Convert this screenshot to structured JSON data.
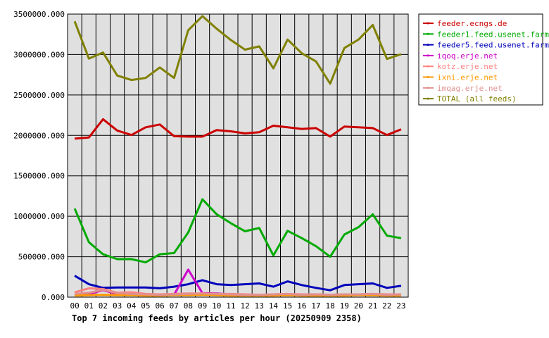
{
  "chart_data": {
    "type": "line",
    "title": "Top 7 incoming feeds by articles per hour (20250909 2358)",
    "xlabel": "",
    "ylabel": "",
    "ylim": [
      0,
      3500000
    ],
    "y_ticks": [
      "0.000",
      "500000.000",
      "1000000.000",
      "1500000.000",
      "2000000.000",
      "2500000.000",
      "3000000.000",
      "3500000.000"
    ],
    "categories": [
      "00",
      "01",
      "02",
      "03",
      "04",
      "05",
      "06",
      "07",
      "08",
      "09",
      "10",
      "11",
      "12",
      "13",
      "14",
      "15",
      "16",
      "17",
      "18",
      "19",
      "20",
      "21",
      "22",
      "23"
    ],
    "grid": true,
    "legend_position": "top-right",
    "series": [
      {
        "name": "feeder.ecngs.de",
        "color": "#cc0000",
        "values": [
          1960000,
          1975000,
          2200000,
          2060000,
          2005000,
          2100000,
          2135000,
          1990000,
          1985000,
          1985000,
          2065000,
          2050000,
          2025000,
          2040000,
          2120000,
          2100000,
          2080000,
          2090000,
          1985000,
          2110000,
          2100000,
          2090000,
          2005000,
          2075000
        ]
      },
      {
        "name": "feeder1.feed.usenet.farm",
        "color": "#00aa00",
        "values": [
          1095000,
          680000,
          530000,
          470000,
          470000,
          430000,
          530000,
          545000,
          800000,
          1210000,
          1025000,
          915000,
          815000,
          855000,
          515000,
          820000,
          730000,
          630000,
          500000,
          775000,
          865000,
          1025000,
          760000,
          730000
        ]
      },
      {
        "name": "feeder5.feed.usenet.farm",
        "color": "#0000bb",
        "values": [
          265000,
          160000,
          115000,
          120000,
          120000,
          120000,
          110000,
          130000,
          160000,
          210000,
          160000,
          150000,
          160000,
          170000,
          130000,
          195000,
          150000,
          115000,
          85000,
          150000,
          160000,
          170000,
          115000,
          140000
        ]
      },
      {
        "name": "iqoq.erje.net",
        "color": "#cc00cc",
        "values": [
          30000,
          40000,
          85000,
          40000,
          30000,
          25000,
          25000,
          30000,
          340000,
          50000,
          45000,
          35000,
          25000,
          25000,
          30000,
          30000,
          25000,
          30000,
          25000,
          30000,
          30000,
          35000,
          25000,
          30000
        ]
      },
      {
        "name": "kotz.erje.net",
        "color": "#ff8080",
        "values": [
          60000,
          110000,
          100000,
          55000,
          60000,
          40000,
          35000,
          40000,
          45000,
          45000,
          40000,
          40000,
          35000,
          30000,
          35000,
          40000,
          35000,
          35000,
          30000,
          35000,
          35000,
          40000,
          35000,
          35000
        ]
      },
      {
        "name": "ixni.erje.net",
        "color": "#ff9900",
        "values": [
          20000,
          25000,
          30000,
          25000,
          25000,
          20000,
          20000,
          25000,
          25000,
          30000,
          25000,
          20000,
          20000,
          20000,
          20000,
          25000,
          20000,
          20000,
          20000,
          20000,
          25000,
          25000,
          20000,
          20000
        ]
      },
      {
        "name": "imqag.erje.net",
        "color": "#e09090",
        "values": [
          40000,
          55000,
          90000,
          50000,
          40000,
          35000,
          30000,
          35000,
          40000,
          45000,
          40000,
          35000,
          30000,
          30000,
          35000,
          40000,
          30000,
          35000,
          30000,
          35000,
          35000,
          40000,
          30000,
          35000
        ]
      },
      {
        "name": "TOTAL (all feeds)",
        "color": "#808000",
        "values": [
          3410000,
          2950000,
          3025000,
          2740000,
          2685000,
          2710000,
          2840000,
          2710000,
          3300000,
          3475000,
          3320000,
          3180000,
          3060000,
          3100000,
          2830000,
          3185000,
          3015000,
          2915000,
          2640000,
          3080000,
          3185000,
          3365000,
          2945000,
          3005000
        ]
      }
    ]
  }
}
